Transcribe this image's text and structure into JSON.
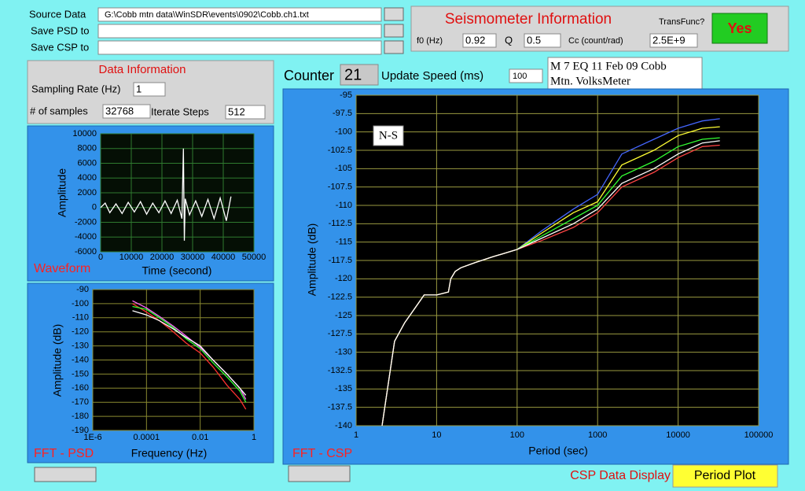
{
  "file_paths": [
    {
      "label": "Source Data",
      "value": "G:\\Cobb mtn data\\WinSDR\\events\\0902\\Cobb.ch1.txt"
    },
    {
      "label": "Save PSD to"
    },
    {
      "label": "Save CSP to"
    }
  ],
  "seismometer": {
    "title": "Seismometer Information",
    "transfunc_label": "TransFunc?",
    "transfunc_button": "Yes",
    "f0_label": "f0 (Hz)",
    "f0": "0.92",
    "q_label": "Q",
    "q": "0.5",
    "cc_label": "Cc (count/rad)",
    "cc": "2.5E+9"
  },
  "data_information": {
    "title": "Data Information",
    "sampling_rate_label": "Sampling Rate (Hz)",
    "sampling_rate": "1",
    "samples_label": "# of samples",
    "samples": "32768",
    "iterate_label": "Iterate Steps",
    "iterate": "512"
  },
  "counter": {
    "label": "Counter",
    "value": "21",
    "speed_label": "Update Speed (ms)",
    "speed": "100"
  },
  "event_note": {
    "lines": [
      "M 7 EQ 11 Feb 09 Cobb",
      "Mtn. VolksMeter"
    ]
  },
  "csp_display": {
    "label": "CSP Data Display",
    "button": "Period Plot"
  },
  "chart_data": [
    {
      "type": "line",
      "title": "Waveform",
      "x_label": "Time (second)",
      "y_label": "Amplitude",
      "color": "#ffffff",
      "x": [
        0,
        1500,
        3000,
        5000,
        7000,
        9000,
        11000,
        13000,
        15000,
        17000,
        19000,
        21000,
        23000,
        25000,
        26500,
        27000,
        27300,
        27600,
        29000,
        31000,
        33000,
        35000,
        37000,
        39000,
        41000,
        42500
      ],
      "values": [
        0,
        600,
        -700,
        500,
        -800,
        700,
        -600,
        800,
        -900,
        600,
        -700,
        900,
        -800,
        1000,
        -1500,
        8000,
        -4500,
        1200,
        -1000,
        900,
        -1200,
        1100,
        -1500,
        1300,
        -1800,
        1500
      ],
      "xlim": [
        0,
        50000
      ],
      "ylim": [
        -6000,
        10000
      ],
      "xticks": [
        0,
        10000,
        20000,
        30000,
        40000,
        50000
      ],
      "yticks": [
        10000,
        8000,
        6000,
        4000,
        2000,
        0,
        -2000,
        -4000,
        -6000
      ],
      "grid": true
    },
    {
      "type": "line",
      "title": "FFT - PSD",
      "x_label": "Frequency (Hz)",
      "y_label": "Amplitude (dB)",
      "x_log": true,
      "x": [
        3e-05,
        0.0001,
        0.0003,
        0.001,
        0.003,
        0.01,
        0.03,
        0.1,
        0.3,
        0.5
      ],
      "series": [
        {
          "color": "#ff3030",
          "values": [
            -100,
            -106,
            -112,
            -120,
            -128,
            -135,
            -145,
            -158,
            -168,
            -175
          ]
        },
        {
          "color": "#33ff33",
          "values": [
            -102,
            -104,
            -110,
            -117,
            -125,
            -132,
            -142,
            -152,
            -162,
            -170
          ]
        },
        {
          "color": "#ff66ff",
          "values": [
            -98,
            -103,
            -109,
            -116,
            -123,
            -131,
            -140,
            -150,
            -160,
            -168
          ]
        },
        {
          "color": "#ffffff",
          "values": [
            -105,
            -108,
            -112,
            -118,
            -124,
            -130,
            -140,
            -150,
            -160,
            -165
          ]
        }
      ],
      "xlim": [
        1e-06,
        1
      ],
      "ylim": [
        -190,
        -90
      ],
      "xticks": [
        {
          "value": 1e-06,
          "label": "1E-6"
        },
        0.0001,
        0.01,
        1
      ],
      "yticks": [
        -90,
        -100,
        -110,
        -120,
        -130,
        -140,
        -150,
        -160,
        -170,
        -180,
        -190
      ],
      "grid": true
    },
    {
      "type": "line",
      "title": "FFT - CSP",
      "x_label": "Period (sec)",
      "y_label": "Amplitude (dB)",
      "annotation": "N-S",
      "x_log": true,
      "x": [
        2.1,
        3,
        4,
        5,
        7,
        10,
        14,
        15,
        17,
        20,
        30,
        50,
        100,
        200,
        500,
        1000,
        2000,
        5000,
        10000,
        20000,
        33000
      ],
      "series": [
        {
          "color": "#4466ff",
          "values": [
            -140,
            -128.5,
            -126,
            -124.5,
            -122.2,
            -122.2,
            -121.8,
            -120,
            -119,
            -118.5,
            -117.8,
            -117,
            -116,
            -113.5,
            -110.5,
            -108.5,
            -103,
            -101,
            -99.5,
            -98.5,
            -98.2
          ]
        },
        {
          "color": "#ffff33",
          "values": [
            -140,
            -128.5,
            -126,
            -124.5,
            -122.2,
            -122.2,
            -121.8,
            -120,
            -119,
            -118.5,
            -117.8,
            -117,
            -116,
            -113.8,
            -111,
            -109.5,
            -104.5,
            -102.5,
            -100.5,
            -99.5,
            -99.3
          ]
        },
        {
          "color": "#33ff33",
          "values": [
            -140,
            -128.5,
            -126,
            -124.5,
            -122.2,
            -122.2,
            -121.8,
            -120,
            -119,
            -118.5,
            -117.8,
            -117,
            -116,
            -114.2,
            -111.8,
            -110,
            -106,
            -104,
            -102,
            -101,
            -100.8
          ]
        },
        {
          "color": "#ff4444",
          "values": [
            -140,
            -128.5,
            -126,
            -124.5,
            -122.2,
            -122.2,
            -121.8,
            -120,
            -119,
            -118.5,
            -117.8,
            -117,
            -116,
            -114.8,
            -113,
            -111,
            -107.5,
            -105.5,
            -103.5,
            -102,
            -101.8
          ]
        },
        {
          "color": "#ffffff",
          "values": [
            -140,
            -128.5,
            -126,
            -124.5,
            -122.2,
            -122.2,
            -121.8,
            -120,
            -119,
            -118.5,
            -117.8,
            -117,
            -116,
            -114.5,
            -112.5,
            -110.5,
            -107,
            -105,
            -103,
            -101.5,
            -101.2
          ]
        }
      ],
      "xlim": [
        1,
        100000
      ],
      "ylim": [
        -140,
        -95
      ],
      "xticks": [
        1,
        10,
        100,
        1000,
        10000,
        100000
      ],
      "yticks": [
        -95,
        -97.5,
        -100,
        -102.5,
        -105,
        -107.5,
        -110,
        -112.5,
        -115,
        -117.5,
        -120,
        -122.5,
        -125,
        -127.5,
        -130,
        -132.5,
        -135,
        -137.5,
        -140
      ],
      "grid": true
    }
  ]
}
